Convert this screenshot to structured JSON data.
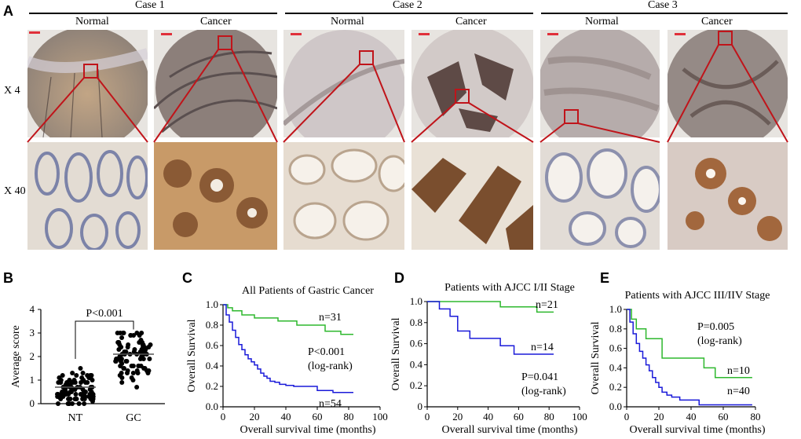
{
  "panel_a": {
    "letter": "A",
    "cases": [
      {
        "title": "Case 1",
        "normal": "Normal",
        "cancer": "Cancer"
      },
      {
        "title": "Case  2",
        "normal": "Normal",
        "cancer": "Cancer"
      },
      {
        "title": "Case  3",
        "normal": "Normal",
        "cancer": "Cancer"
      }
    ],
    "row_low": "X 4",
    "row_high": "X 40",
    "colors": {
      "zoom_box": "#c0141a",
      "scale_bar": "#e0303a",
      "stain_brown": "#8a5a35",
      "hematoxylin": "#6d78a6"
    }
  },
  "panel_b": {
    "letter": "B",
    "chart_data": {
      "type": "scatter",
      "ylabel": "Average score",
      "categories": [
        "NT",
        "GC"
      ],
      "ylim": [
        0,
        4
      ],
      "yticks": [
        0,
        1,
        2,
        3,
        4
      ],
      "annotation": "P<0.001",
      "mean": [
        0.7,
        2.1
      ],
      "sem": [
        0.03,
        0.05
      ],
      "spread": {
        "NT": [
          0,
          1.7
        ],
        "GC": [
          0.3,
          3.0
        ]
      },
      "n": [
        94,
        85
      ]
    }
  },
  "panel_c": {
    "letter": "C",
    "chart_data": {
      "type": "line",
      "title": "All Patients of Gastric Cancer",
      "xlabel": "Overall survival time (months)",
      "ylabel": "Overall Survival",
      "xlim": [
        0,
        100
      ],
      "ylim": [
        0,
        1.0
      ],
      "xticks": [
        0,
        20,
        40,
        60,
        80,
        100
      ],
      "yticks": [
        "0.0",
        "0.2",
        "0.4",
        "0.6",
        "0.8",
        "1.0"
      ],
      "series": [
        {
          "name": "n=31",
          "color": "#2eb82e",
          "x": [
            0,
            3,
            6,
            12,
            20,
            35,
            47,
            65,
            75,
            83
          ],
          "y": [
            1.0,
            0.97,
            0.94,
            0.9,
            0.87,
            0.84,
            0.8,
            0.74,
            0.71,
            0.71
          ]
        },
        {
          "name": "n=54",
          "color": "#1a1ad9",
          "x": [
            0,
            2,
            4,
            6,
            8,
            10,
            12,
            14,
            16,
            18,
            20,
            22,
            24,
            26,
            28,
            30,
            33,
            36,
            40,
            45,
            50,
            60,
            70,
            83
          ],
          "y": [
            1.0,
            0.9,
            0.83,
            0.75,
            0.68,
            0.61,
            0.56,
            0.51,
            0.47,
            0.44,
            0.41,
            0.37,
            0.33,
            0.3,
            0.28,
            0.25,
            0.24,
            0.22,
            0.21,
            0.2,
            0.2,
            0.16,
            0.14,
            0.14
          ]
        }
      ],
      "annotation": [
        "P<0.001",
        "(log-rank)"
      ]
    }
  },
  "panel_d": {
    "letter": "D",
    "chart_data": {
      "type": "line",
      "title": "Patients with AJCC I/II Stage",
      "xlabel": "Overall survival time (months)",
      "ylabel": "Overall Survival",
      "xlim": [
        0,
        100
      ],
      "ylim": [
        0,
        1.0
      ],
      "xticks": [
        0,
        20,
        40,
        60,
        80,
        100
      ],
      "yticks": [
        "0",
        "0.2",
        "0.4",
        "0.6",
        "0.8",
        "1.0"
      ],
      "series": [
        {
          "name": "n=21",
          "color": "#2eb82e",
          "x": [
            0,
            48,
            72,
            83
          ],
          "y": [
            1.0,
            0.95,
            0.9,
            0.9
          ]
        },
        {
          "name": "n=14",
          "color": "#1a1ad9",
          "x": [
            0,
            8,
            15,
            20,
            28,
            48,
            57,
            83
          ],
          "y": [
            1.0,
            0.93,
            0.86,
            0.72,
            0.65,
            0.58,
            0.5,
            0.5
          ]
        }
      ],
      "annotation": [
        "P=0.041",
        "(log-rank)"
      ]
    }
  },
  "panel_e": {
    "letter": "E",
    "chart_data": {
      "type": "line",
      "title": "Patients with AJCC III/IIV Stage",
      "xlabel": "Overall survival time (months)",
      "ylabel": "Overall Survival",
      "xlim": [
        0,
        80
      ],
      "ylim": [
        0,
        1.0
      ],
      "xticks": [
        0,
        20,
        40,
        60,
        80
      ],
      "yticks": [
        "0.0",
        "0.2",
        "0.4",
        "0.6",
        "0.8",
        "1.0"
      ],
      "series": [
        {
          "name": "n=10",
          "color": "#2eb82e",
          "x": [
            0,
            3,
            6,
            12,
            22,
            48,
            55,
            78
          ],
          "y": [
            1.0,
            0.9,
            0.8,
            0.7,
            0.5,
            0.4,
            0.3,
            0.3
          ]
        },
        {
          "name": "n=40",
          "color": "#1a1ad9",
          "x": [
            0,
            2,
            4,
            6,
            8,
            10,
            12,
            14,
            16,
            18,
            20,
            22,
            25,
            28,
            33,
            45,
            60,
            78
          ],
          "y": [
            1.0,
            0.87,
            0.75,
            0.65,
            0.57,
            0.5,
            0.43,
            0.37,
            0.3,
            0.25,
            0.2,
            0.15,
            0.12,
            0.1,
            0.07,
            0.02,
            0.02,
            0.02
          ]
        }
      ],
      "annotation": [
        "P=0.005",
        "(log-rank)"
      ]
    }
  }
}
